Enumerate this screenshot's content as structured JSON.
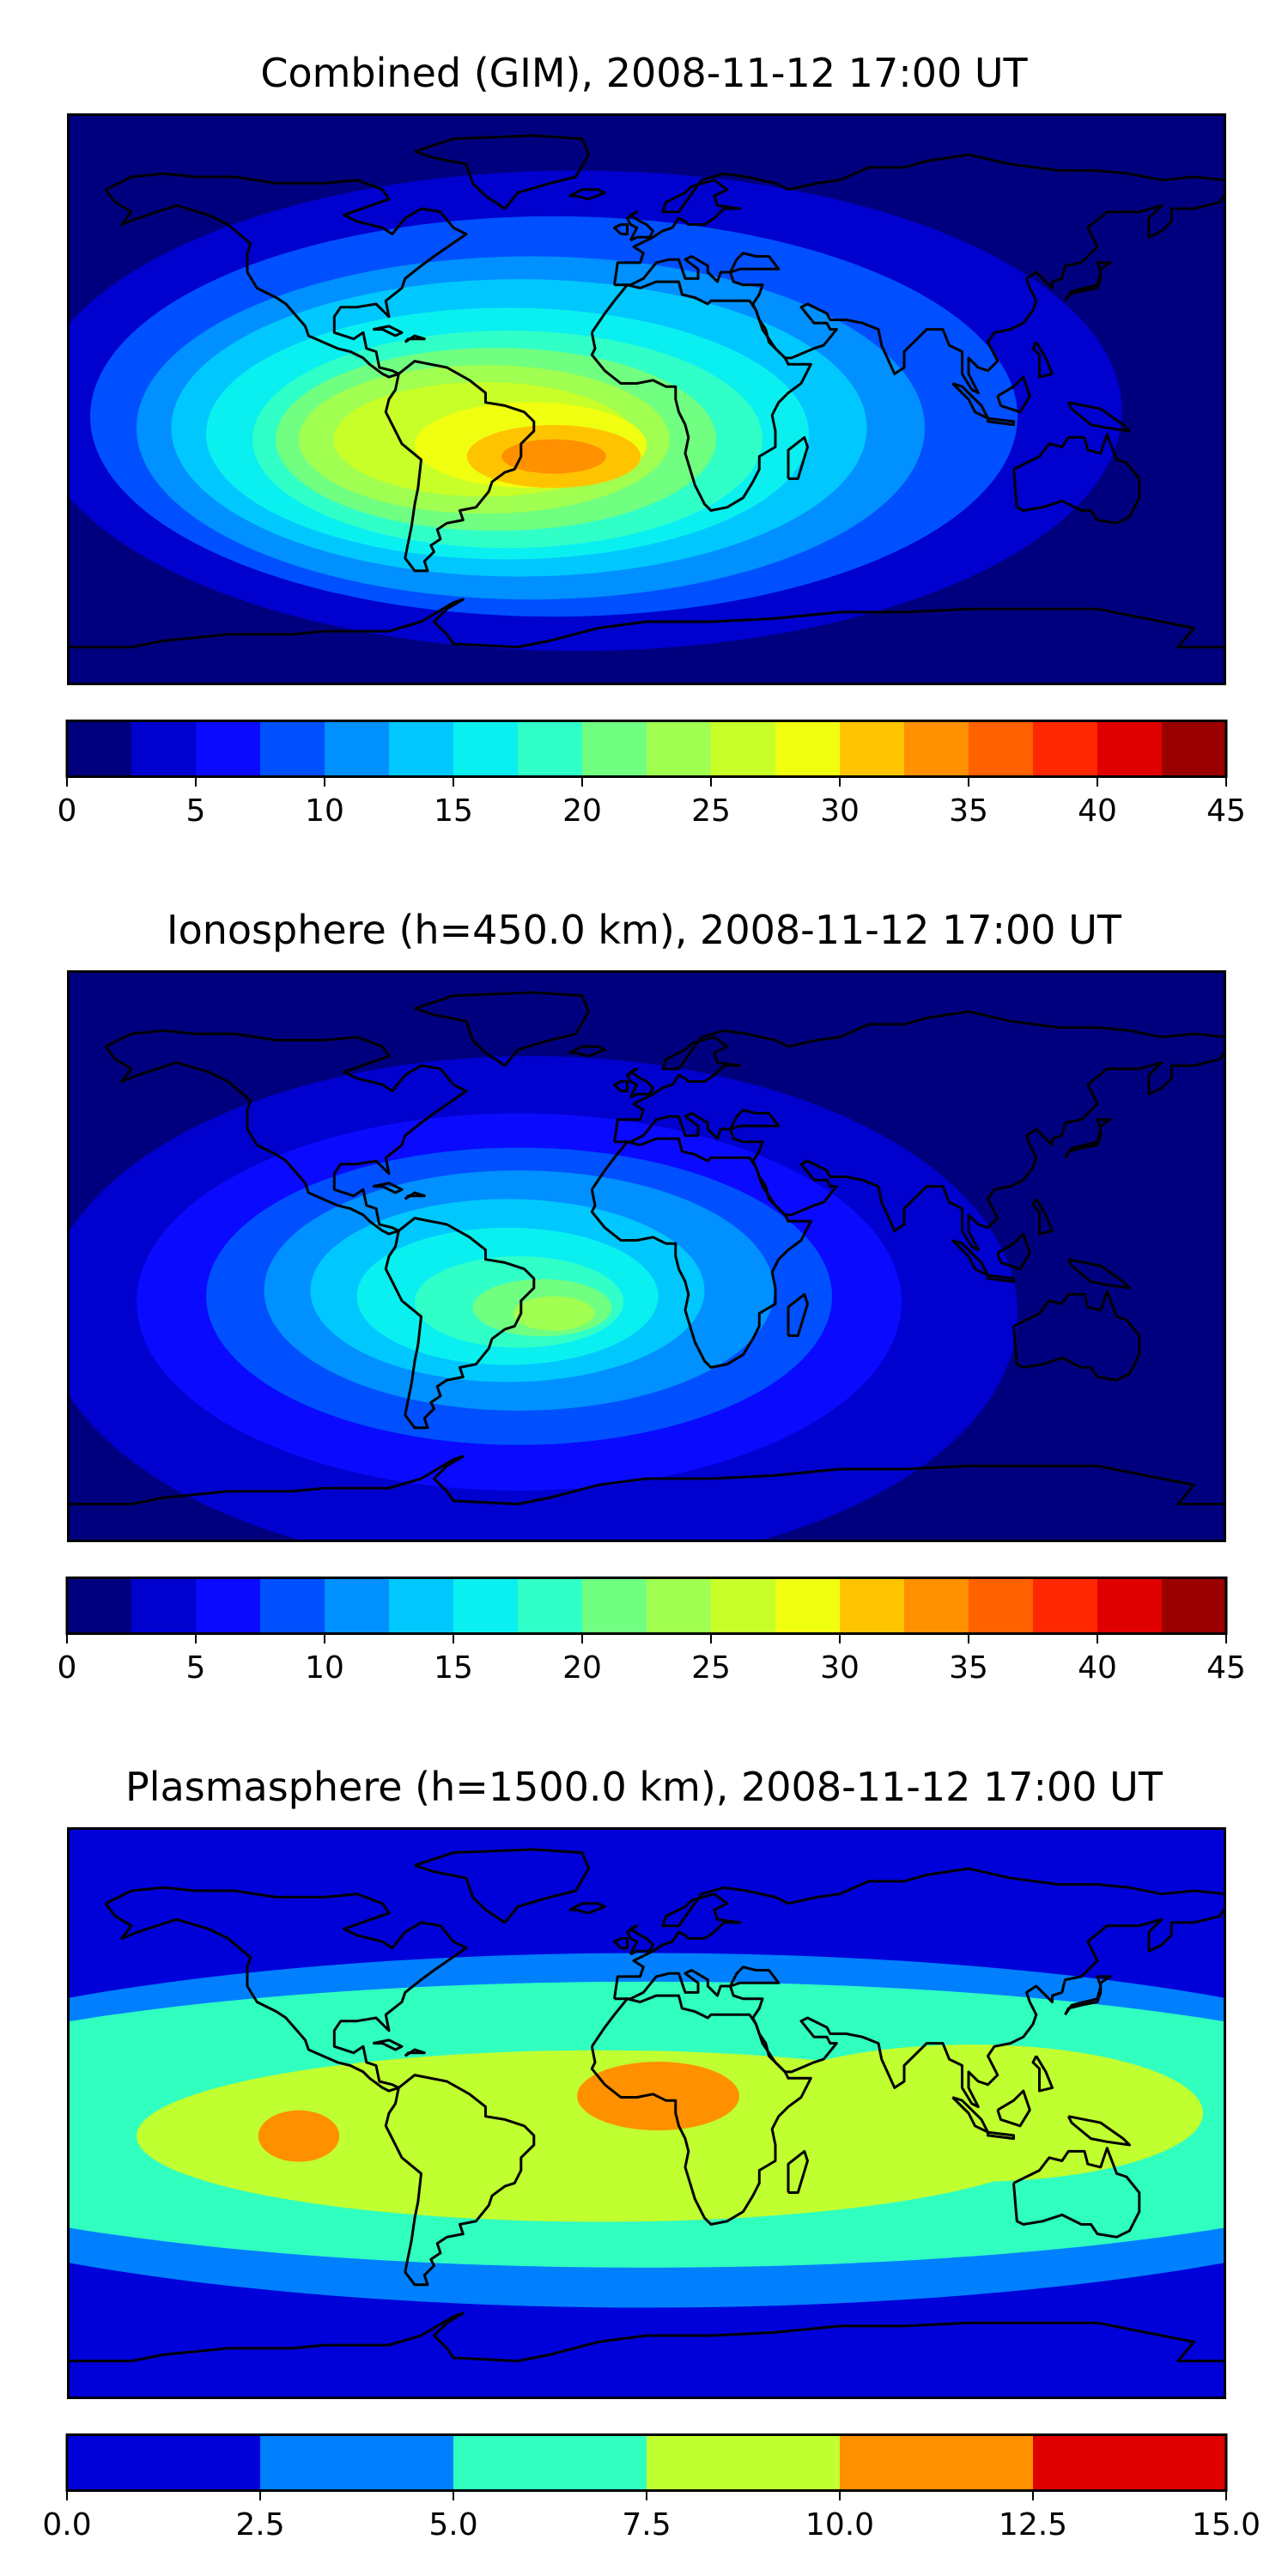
{
  "chart_data": [
    {
      "type": "heatmap",
      "title": "Combined (GIM), 2008-11-12 17:00 UT",
      "colorbar": {
        "min": 0,
        "max": 45,
        "step": 2.5,
        "ticks": [
          "0",
          "5",
          "10",
          "15",
          "20",
          "25",
          "30",
          "35",
          "40",
          "45"
        ],
        "colors": [
          "#00007f",
          "#0000cf",
          "#0a0aff",
          "#0050ff",
          "#0090ff",
          "#00c8ff",
          "#0af0f0",
          "#30ffc8",
          "#70ff80",
          "#a0ff50",
          "#c8ff28",
          "#f0ff10",
          "#ffc400",
          "#ff9000",
          "#ff6000",
          "#ff2800",
          "#e00000",
          "#9a0000"
        ]
      },
      "features": [
        {
          "name": "background",
          "level": 1.5,
          "cx": 0.5,
          "cy": 0.5,
          "rx": 0.6,
          "ry": 0.6
        },
        {
          "name": "L3",
          "level": 4,
          "cx": 0.44,
          "cy": 0.52,
          "rx": 0.47,
          "ry": 0.42
        },
        {
          "name": "L4",
          "level": 9,
          "cx": 0.42,
          "cy": 0.53,
          "rx": 0.4,
          "ry": 0.35
        },
        {
          "name": "L5",
          "level": 11,
          "cx": 0.4,
          "cy": 0.55,
          "rx": 0.34,
          "ry": 0.3
        },
        {
          "name": "L6",
          "level": 14,
          "cx": 0.39,
          "cy": 0.55,
          "rx": 0.3,
          "ry": 0.26
        },
        {
          "name": "L7",
          "level": 16,
          "cx": 0.38,
          "cy": 0.56,
          "rx": 0.26,
          "ry": 0.22
        },
        {
          "name": "L8",
          "level": 19,
          "cx": 0.38,
          "cy": 0.57,
          "rx": 0.22,
          "ry": 0.19
        },
        {
          "name": "L9",
          "level": 21,
          "cx": 0.37,
          "cy": 0.57,
          "rx": 0.19,
          "ry": 0.16
        },
        {
          "name": "L10",
          "level": 24,
          "cx": 0.36,
          "cy": 0.57,
          "rx": 0.16,
          "ry": 0.13
        },
        {
          "name": "L11",
          "level": 26,
          "cx": 0.36,
          "cy": 0.57,
          "rx": 0.13,
          "ry": 0.1
        },
        {
          "name": "L12",
          "level": 29,
          "cx": 0.4,
          "cy": 0.58,
          "rx": 0.1,
          "ry": 0.075
        },
        {
          "name": "L13",
          "level": 31,
          "cx": 0.42,
          "cy": 0.6,
          "rx": 0.075,
          "ry": 0.055
        },
        {
          "name": "L14",
          "level": 34,
          "cx": 0.42,
          "cy": 0.6,
          "rx": 0.045,
          "ry": 0.03
        }
      ]
    },
    {
      "type": "heatmap",
      "title": "Ionosphere  (h=450.0 km), 2008-11-12 17:00 UT",
      "colorbar": {
        "min": 0,
        "max": 45,
        "step": 2.5,
        "ticks": [
          "0",
          "5",
          "10",
          "15",
          "20",
          "25",
          "30",
          "35",
          "40",
          "45"
        ],
        "colors": [
          "#00007f",
          "#0000cf",
          "#0a0aff",
          "#0050ff",
          "#0090ff",
          "#00c8ff",
          "#0af0f0",
          "#30ffc8",
          "#70ff80",
          "#a0ff50",
          "#c8ff28",
          "#f0ff10",
          "#ffc400",
          "#ff9000",
          "#ff6000",
          "#ff2800",
          "#e00000",
          "#9a0000"
        ]
      },
      "features": [
        {
          "name": "background",
          "level": 1,
          "cx": 0.5,
          "cy": 0.5,
          "rx": 0.6,
          "ry": 0.6
        },
        {
          "name": "L2",
          "level": 3,
          "cx": 0.4,
          "cy": 0.6,
          "rx": 0.42,
          "ry": 0.45
        },
        {
          "name": "L3",
          "level": 6,
          "cx": 0.39,
          "cy": 0.58,
          "rx": 0.33,
          "ry": 0.33
        },
        {
          "name": "L4",
          "level": 9,
          "cx": 0.39,
          "cy": 0.57,
          "rx": 0.27,
          "ry": 0.26
        },
        {
          "name": "L5",
          "level": 11,
          "cx": 0.39,
          "cy": 0.56,
          "rx": 0.22,
          "ry": 0.21
        },
        {
          "name": "L6",
          "level": 14,
          "cx": 0.38,
          "cy": 0.56,
          "rx": 0.17,
          "ry": 0.16
        },
        {
          "name": "L7",
          "level": 16,
          "cx": 0.38,
          "cy": 0.57,
          "rx": 0.13,
          "ry": 0.12
        },
        {
          "name": "L8",
          "level": 19,
          "cx": 0.39,
          "cy": 0.58,
          "rx": 0.09,
          "ry": 0.08
        },
        {
          "name": "L9",
          "level": 21,
          "cx": 0.41,
          "cy": 0.59,
          "rx": 0.06,
          "ry": 0.05
        },
        {
          "name": "L10",
          "level": 24,
          "cx": 0.42,
          "cy": 0.6,
          "rx": 0.035,
          "ry": 0.03
        }
      ]
    },
    {
      "type": "heatmap",
      "title": "Plasmasphere (h=1500.0 km), 2008-11-12 17:00 UT",
      "colorbar": {
        "min": 0,
        "max": 15,
        "step": 2.5,
        "ticks": [
          "0.0",
          "2.5",
          "5.0",
          "7.5",
          "10.0",
          "12.5",
          "15.0"
        ],
        "colors": [
          "#0000d8",
          "#0080ff",
          "#30ffc0",
          "#c0ff30",
          "#ff9000",
          "#e00000"
        ]
      },
      "features": [
        {
          "name": "background",
          "level": 1.5,
          "cx": 0.5,
          "cy": 0.5,
          "rx": 0.6,
          "ry": 0.6
        },
        {
          "name": "band-light-blue",
          "level": 3.5,
          "cx": 0.5,
          "cy": 0.53,
          "rx": 0.75,
          "ry": 0.31
        },
        {
          "name": "band-cyan",
          "level": 6,
          "cx": 0.5,
          "cy": 0.52,
          "rx": 0.72,
          "ry": 0.25
        },
        {
          "name": "band-yellow",
          "level": 8.5,
          "cx": 0.46,
          "cy": 0.54,
          "rx": 0.4,
          "ry": 0.15
        },
        {
          "name": "band-yellow-east",
          "level": 8.5,
          "cx": 0.78,
          "cy": 0.5,
          "rx": 0.2,
          "ry": 0.12
        },
        {
          "name": "hot-spot-west",
          "level": 11,
          "cx": 0.2,
          "cy": 0.54,
          "rx": 0.035,
          "ry": 0.045
        },
        {
          "name": "hot-spot-africa",
          "level": 11,
          "cx": 0.51,
          "cy": 0.47,
          "rx": 0.07,
          "ry": 0.06
        }
      ]
    }
  ]
}
